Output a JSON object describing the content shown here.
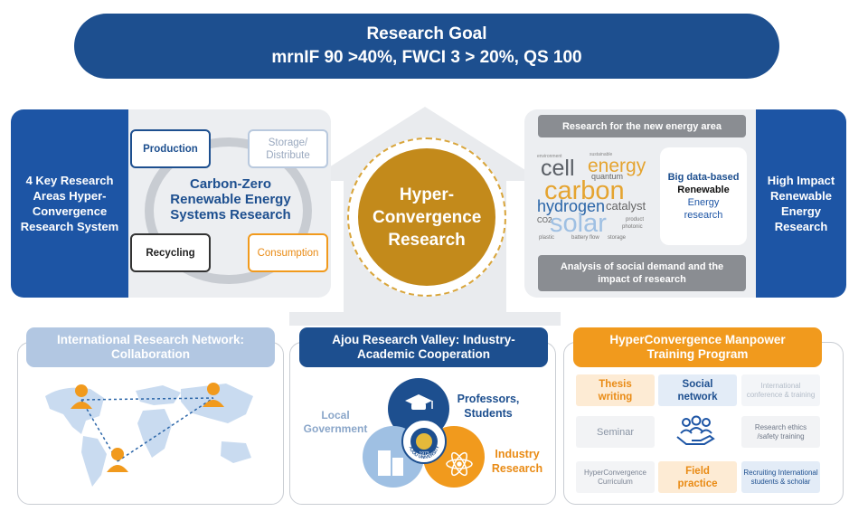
{
  "goal": {
    "line1": "Research Goal",
    "line2": "mrnIF 90 >40%, FWCI 3 > 20%, QS 100"
  },
  "left_panel": {
    "title": "4 Key Research Areas Hyper-Convergence Research System",
    "cycle_title": "Carbon-Zero Renewable Energy Systems Research",
    "nodes": {
      "production": "Production",
      "storage": "Storage/ Distribute",
      "recycling": "Recycling",
      "consumption": "Consumption"
    }
  },
  "center": {
    "label": "Hyper- Convergence Research"
  },
  "right_panel": {
    "title": "High Impact Renewable Energy Research",
    "bar_top": "Research for the new energy area",
    "bar_bottom": "Analysis of social demand and the impact of research",
    "bigdata_line1": "Big data-based",
    "bigdata_line2": "Renewable",
    "bigdata_line3": "Energy research",
    "word_cloud": {
      "cell": "cell",
      "energy": "energy",
      "carbon": "carbon",
      "hydrogen": "hydrogen",
      "catalyst": "catalyst",
      "solar": "solar",
      "quantum": "quantum",
      "storage": "storage",
      "battery": "battery flow",
      "co2": "CO2",
      "plastic": "plastic",
      "photonic": "photonic",
      "product": "product",
      "sustainable": "sustainable",
      "environment": "environment"
    }
  },
  "cards": {
    "network": {
      "title": "International Research Network: Collaboration"
    },
    "valley": {
      "title": "Ajou Research Valley: Industry-Academic Cooperation",
      "local": "Local Government",
      "professors": "Professors, Students",
      "industry": "Industry Research",
      "seal_text": "AJOU UNIVERSITY",
      "seal_year": "1973"
    },
    "training": {
      "title": "HyperConvergence Manpower Training Program",
      "thesis": "Thesis writing",
      "social": "Social network",
      "intl": "International conference & training",
      "seminar": "Seminar",
      "ethics": "Research ethics /safety training",
      "hc_curriculum": "HyperConvergence Curriculum",
      "field": "Field practice",
      "recruit": "Recruiting International students & scholar"
    }
  },
  "colors": {
    "navy": "#1d4f8f",
    "blue": "#1d55a5",
    "gold": "#c38a1b",
    "orange": "#f19a1d",
    "light_blue": "#b2c7e2"
  }
}
